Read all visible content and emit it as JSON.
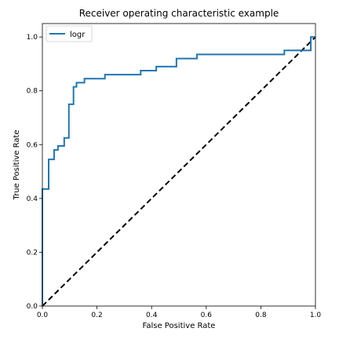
{
  "chart_data": {
    "type": "line",
    "title": "Receiver operating characteristic example",
    "xlabel": "False Positive Rate",
    "ylabel": "True Positive Rate",
    "xlim": [
      0.0,
      1.0
    ],
    "ylim": [
      0.0,
      1.05
    ],
    "xticks": [
      "0.0",
      "0.2",
      "0.4",
      "0.6",
      "0.8",
      "1.0"
    ],
    "yticks": [
      "0.0",
      "0.2",
      "0.4",
      "0.6",
      "0.8",
      "1.0"
    ],
    "grid": false,
    "legend_position": "top-left",
    "series": [
      {
        "name": "logr",
        "color": "#1f77b4",
        "style": "step",
        "x": [
          0.0,
          0.0,
          0.023,
          0.023,
          0.043,
          0.043,
          0.057,
          0.057,
          0.08,
          0.08,
          0.097,
          0.097,
          0.114,
          0.114,
          0.125,
          0.125,
          0.154,
          0.154,
          0.229,
          0.229,
          0.36,
          0.36,
          0.417,
          0.417,
          0.491,
          0.491,
          0.566,
          0.566,
          0.886,
          0.886,
          0.983,
          0.983,
          1.0
        ],
        "y": [
          0.0,
          0.435,
          0.435,
          0.545,
          0.545,
          0.58,
          0.58,
          0.595,
          0.595,
          0.625,
          0.625,
          0.75,
          0.75,
          0.815,
          0.815,
          0.83,
          0.83,
          0.845,
          0.845,
          0.86,
          0.86,
          0.875,
          0.875,
          0.89,
          0.89,
          0.92,
          0.92,
          0.935,
          0.935,
          0.95,
          0.95,
          1.0,
          1.0
        ]
      },
      {
        "name": "",
        "color": "#000000",
        "style": "dashed",
        "x": [
          0.0,
          1.0
        ],
        "y": [
          0.0,
          1.0
        ]
      }
    ]
  }
}
